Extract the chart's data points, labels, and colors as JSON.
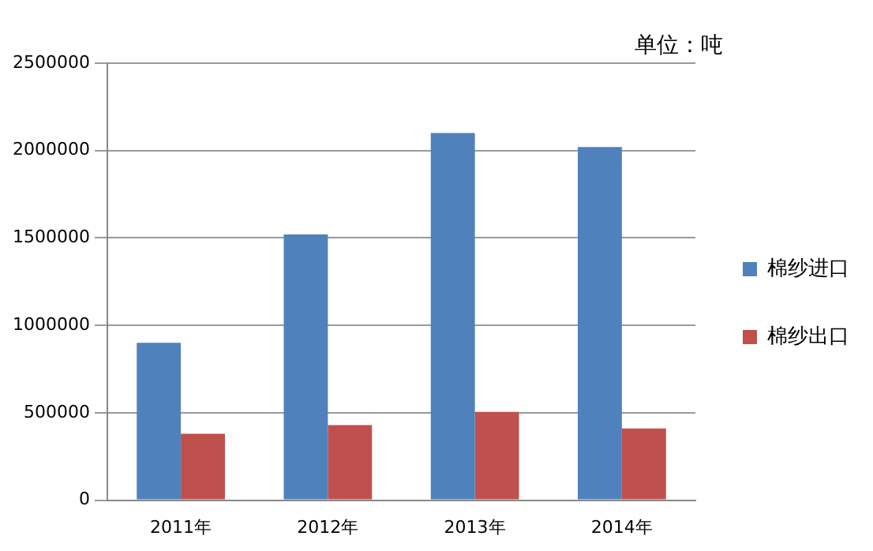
{
  "chart_data": {
    "type": "bar",
    "categories": [
      "2011年",
      "2012年",
      "2013年",
      "2014年"
    ],
    "series": [
      {
        "name": "棉纱进口",
        "color": "#4f81bd",
        "values": [
          900000,
          1520000,
          2100000,
          2020000
        ]
      },
      {
        "name": "棉纱出口",
        "color": "#c0504d",
        "values": [
          380000,
          430000,
          505000,
          410000
        ]
      }
    ],
    "ylim": [
      0,
      2500000
    ],
    "yticks": [
      0,
      500000,
      1000000,
      1500000,
      2000000,
      2500000
    ],
    "grid": "y",
    "legend": "right",
    "annotations": [
      "单位：吨"
    ]
  }
}
